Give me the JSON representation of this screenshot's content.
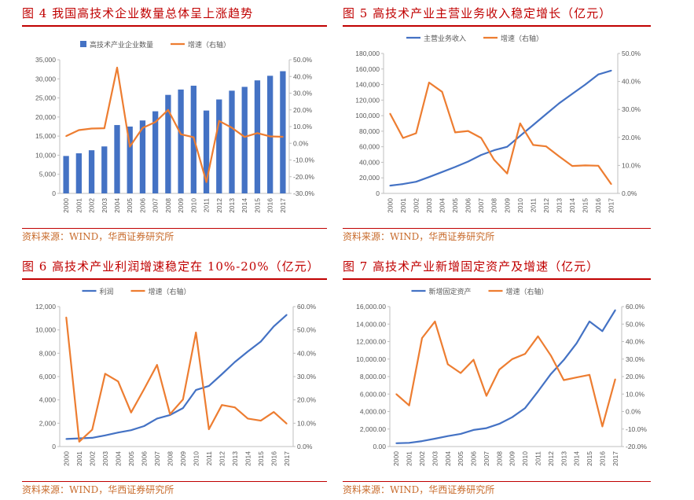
{
  "charts_meta": {
    "source_text": "资料来源：WIND，华西证券研究所"
  },
  "chart_data": [
    {
      "id": "fig4",
      "title": "图 4   我国高技术企业数量总体呈上涨趋势",
      "type": "bar",
      "categories": [
        "2000",
        "2001",
        "2002",
        "2003",
        "2004",
        "2005",
        "2006",
        "2007",
        "2008",
        "2009",
        "2010",
        "2011",
        "2012",
        "2013",
        "2014",
        "2015",
        "2016",
        "2017"
      ],
      "left_axis": {
        "min": 0,
        "max": 35000,
        "step": 5000,
        "format": "thousands"
      },
      "right_axis": {
        "min": -30,
        "max": 50,
        "step": 10,
        "format": "pct1"
      },
      "series": [
        {
          "name": "高技术产业企业数量",
          "kind": "bar",
          "axis": "left",
          "color": "#4472c4",
          "values": [
            9800,
            10500,
            11300,
            12300,
            17900,
            17500,
            19100,
            21500,
            25800,
            27200,
            28200,
            21700,
            24600,
            26900,
            27900,
            29600,
            30800,
            32000
          ]
        },
        {
          "name": "增速（右轴）",
          "kind": "line",
          "axis": "right",
          "color": "#ed7d31",
          "values": [
            4.3,
            7.9,
            8.8,
            9.0,
            45.3,
            -2.0,
            9.2,
            12.7,
            20.0,
            5.4,
            3.6,
            -23.2,
            13.4,
            9.3,
            3.8,
            6.1,
            4.1,
            3.9
          ]
        }
      ]
    },
    {
      "id": "fig5",
      "title": "图 5   高技术产业主营业务收入稳定增长（亿元）",
      "type": "line",
      "categories": [
        "2000",
        "2001",
        "2002",
        "2003",
        "2004",
        "2005",
        "2006",
        "2007",
        "2008",
        "2009",
        "2010",
        "2011",
        "2012",
        "2013",
        "2014",
        "2015",
        "2016",
        "2017"
      ],
      "left_axis": {
        "min": 0,
        "max": 180000,
        "step": 20000,
        "format": "thousands"
      },
      "right_axis": {
        "min": 0,
        "max": 50,
        "step": 10,
        "format": "pct1"
      },
      "series": [
        {
          "name": "主营业务收入",
          "kind": "line",
          "axis": "left",
          "color": "#4472c4",
          "values": [
            10000,
            12000,
            15000,
            21000,
            27500,
            34000,
            41000,
            49500,
            55500,
            60000,
            74000,
            88000,
            102000,
            116000,
            128000,
            140000,
            153000,
            158000
          ]
        },
        {
          "name": "增速（右轴）",
          "kind": "line",
          "axis": "right",
          "color": "#ed7d31",
          "values": [
            28.5,
            19.8,
            21.5,
            39.6,
            36.3,
            21.8,
            22.3,
            19.8,
            12.0,
            7.1,
            25.0,
            17.3,
            16.8,
            13.2,
            9.8,
            10.0,
            9.9,
            3.3
          ]
        }
      ]
    },
    {
      "id": "fig6",
      "title": "图 6   高技术产业利润增速稳定在 10%-20%（亿元）",
      "type": "line",
      "categories": [
        "2000",
        "2001",
        "2002",
        "2003",
        "2004",
        "2005",
        "2006",
        "2007",
        "2008",
        "2009",
        "2010",
        "2011",
        "2012",
        "2013",
        "2014",
        "2015",
        "2016",
        "2017"
      ],
      "left_axis": {
        "min": 0,
        "max": 12000,
        "step": 2000,
        "format": "thousands"
      },
      "right_axis": {
        "min": 0,
        "max": 60,
        "step": 10,
        "format": "pct1"
      },
      "series": [
        {
          "name": "利润",
          "kind": "line",
          "axis": "left",
          "color": "#4472c4",
          "values": [
            650,
            700,
            750,
            960,
            1200,
            1400,
            1750,
            2400,
            2700,
            3300,
            4850,
            5200,
            6200,
            7250,
            8150,
            9000,
            10300,
            11300
          ]
        },
        {
          "name": "增速（右轴）",
          "kind": "line",
          "axis": "right",
          "color": "#ed7d31",
          "values": [
            55.4,
            2.1,
            7.2,
            31.2,
            27.9,
            14.6,
            24.6,
            35.0,
            13.9,
            20.2,
            48.9,
            7.4,
            17.8,
            16.8,
            12.0,
            11.1,
            14.8,
            9.8
          ]
        }
      ]
    },
    {
      "id": "fig7",
      "title": "图 7   高技术产业新增固定资产及增速（亿元）",
      "type": "line",
      "categories": [
        "2000",
        "2001",
        "2002",
        "2003",
        "2004",
        "2005",
        "2006",
        "2007",
        "2008",
        "2009",
        "2010",
        "2011",
        "2012",
        "2013",
        "2014",
        "2015",
        "2016",
        "2017"
      ],
      "left_axis": {
        "min": 0,
        "max": 16000,
        "step": 2000,
        "format": "fixed2"
      },
      "right_axis": {
        "min": -20,
        "max": 60,
        "step": 10,
        "format": "pct1"
      },
      "series": [
        {
          "name": "新增固定资产",
          "kind": "line",
          "axis": "left",
          "color": "#4472c4",
          "values": [
            380,
            420,
            620,
            900,
            1200,
            1450,
            1900,
            2100,
            2600,
            3350,
            4400,
            6300,
            8300,
            9900,
            11800,
            14300,
            13200,
            15600
          ]
        },
        {
          "name": "增速（右轴）",
          "kind": "line",
          "axis": "right",
          "color": "#ed7d31",
          "values": [
            10.0,
            3.5,
            42.0,
            51.5,
            27.0,
            22.0,
            29.6,
            9.0,
            24.0,
            30.0,
            33.0,
            43.0,
            32.0,
            18.0,
            19.5,
            21.0,
            -8.5,
            18.5
          ]
        }
      ]
    }
  ]
}
